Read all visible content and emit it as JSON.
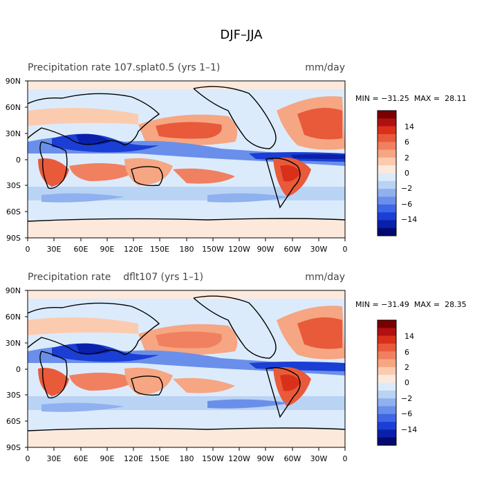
{
  "figure": {
    "title": "DJF–JJA"
  },
  "panels": [
    {
      "title_left": "Precipitation rate 107.splat0.5 (yrs 1–1)",
      "title_right": "mm/day",
      "stats": "MIN = −31.25  MAX =  28.11"
    },
    {
      "title_left": "Precipitation rate    dflt107 (yrs 1–1)",
      "title_right": "mm/day",
      "stats": "MIN = −31.49  MAX =  28.35"
    }
  ],
  "axes": {
    "lat_labels": [
      "90N",
      "60N",
      "30N",
      "0",
      "30S",
      "60S",
      "90S"
    ],
    "lon_labels": [
      "0",
      "30E",
      "60E",
      "90E",
      "120E",
      "150E",
      "180",
      "150W",
      "120W",
      "90W",
      "60W",
      "30W",
      "0"
    ]
  },
  "colorbar": {
    "labels": [
      "14",
      "6",
      "2",
      "0",
      "−2",
      "−6",
      "−14"
    ],
    "colors": [
      "#7a0000",
      "#b01010",
      "#d9301a",
      "#e85a3a",
      "#f08060",
      "#f6a682",
      "#fbcbb0",
      "#fde9dc",
      "#dcebfb",
      "#b9d3f5",
      "#8fb1ef",
      "#6a8fea",
      "#3f66e6",
      "#1b3fd4",
      "#0a1faa",
      "#020a70"
    ]
  },
  "chart_data": {
    "type": "heatmap",
    "title": "DJF–JJA",
    "units": "mm/day",
    "x_range": [
      0,
      360
    ],
    "y_range": [
      -90,
      90
    ],
    "colorbar_levels": [
      -14,
      -10,
      -6,
      -4,
      -2,
      -1,
      0,
      1,
      2,
      4,
      6,
      10,
      14
    ],
    "panels": [
      {
        "name": "107.splat0.5",
        "min": -31.25,
        "max": 28.11
      },
      {
        "name": "dflt107",
        "min": -31.49,
        "max": 28.35
      }
    ]
  }
}
